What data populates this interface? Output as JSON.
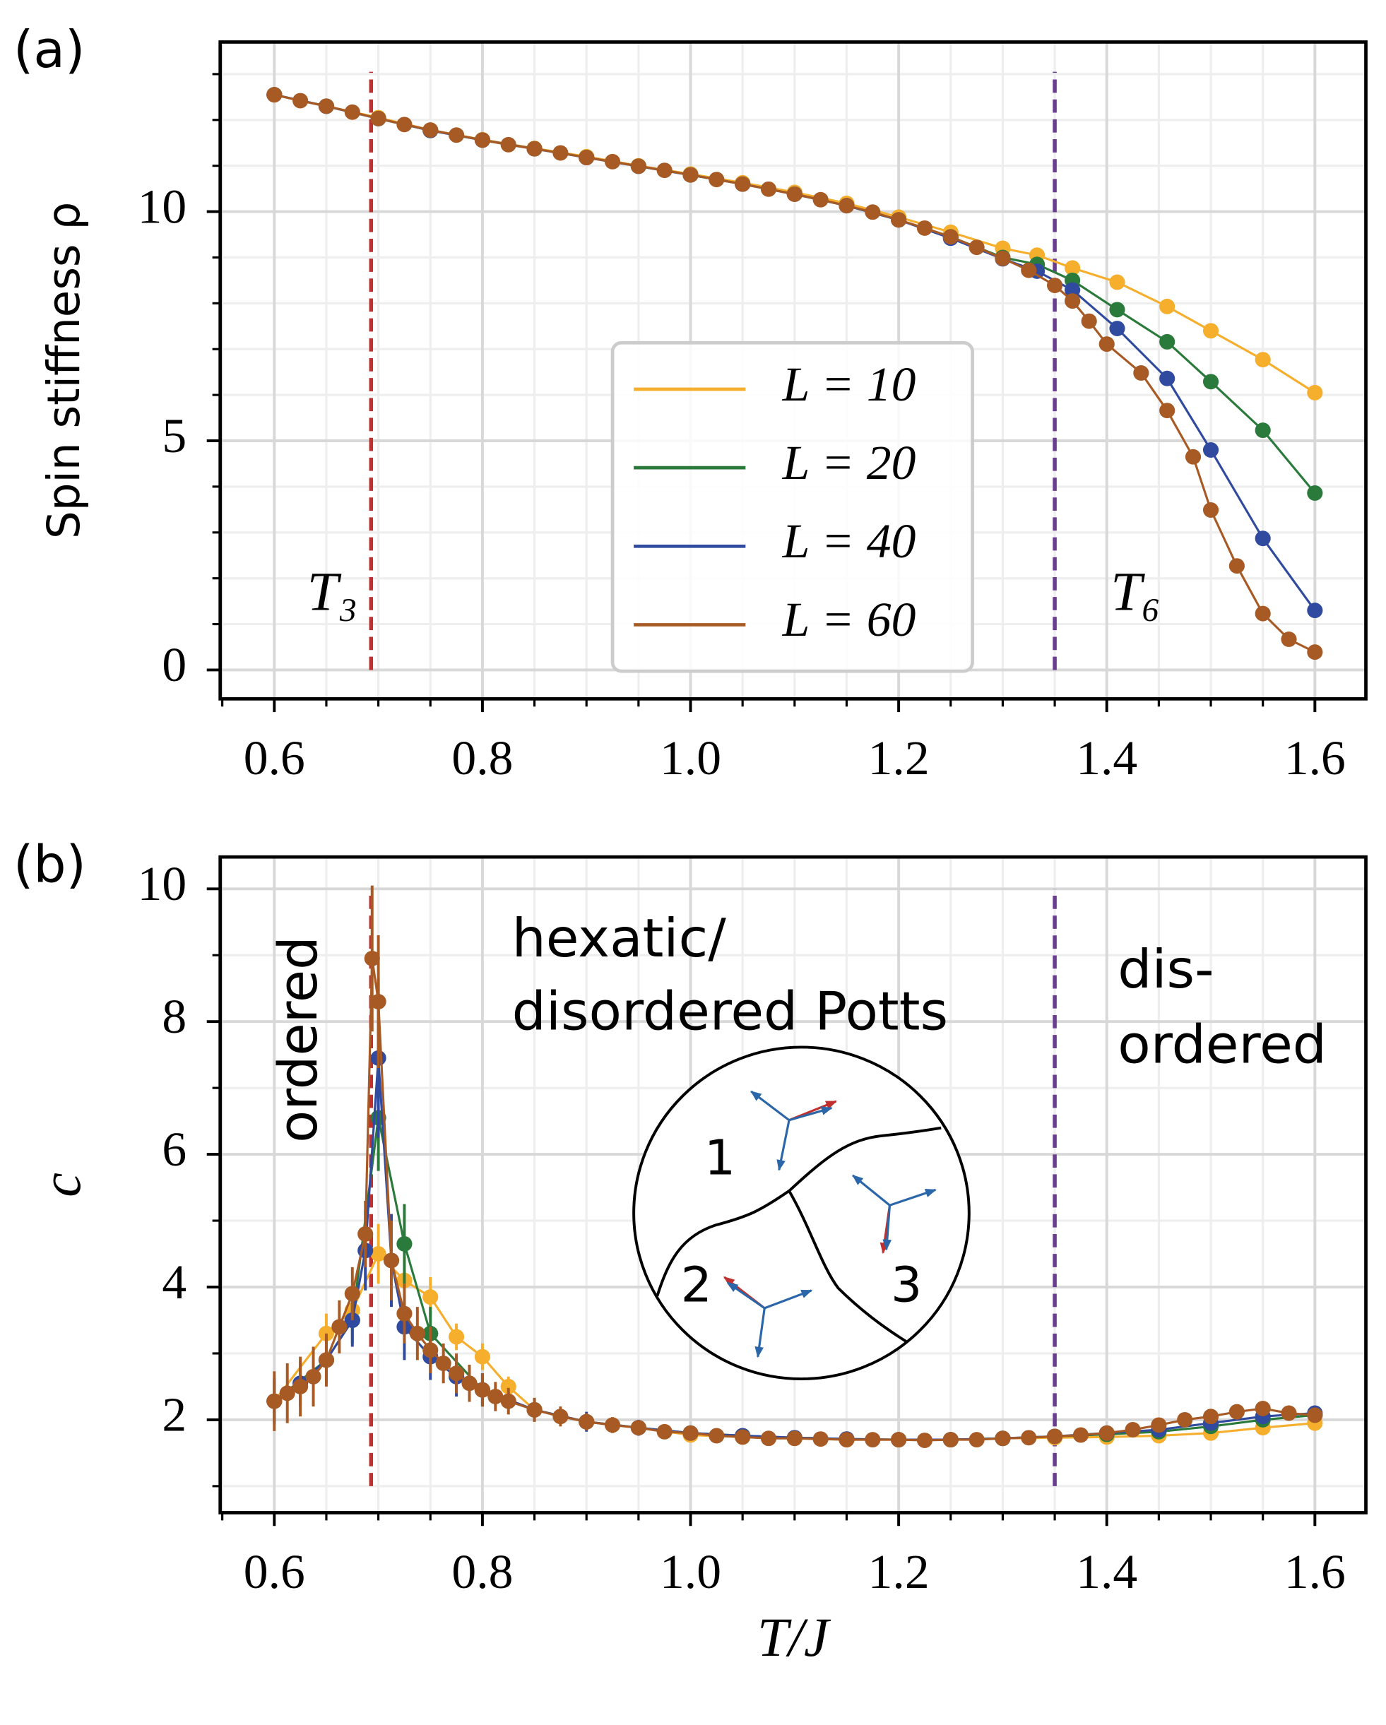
{
  "chart_data": [
    {
      "type": "line",
      "panel_label": "(a)",
      "ylabel": "Spin stiffness ρ",
      "xlim": [
        0.548,
        1.649
      ],
      "ylim": [
        -0.63,
        13.7
      ],
      "xticks": [
        0.6,
        0.8,
        {
          "value": 1,
          "label": "1.0"
        },
        1.2,
        1.4,
        1.6
      ],
      "yticks": [
        0,
        5,
        10
      ],
      "xminorticks": [
        0.55,
        0.65,
        0.7,
        0.75,
        0.85,
        0.9,
        0.95,
        1.05,
        1.1,
        1.15,
        1.25,
        1.3,
        1.35,
        1.45,
        1.5,
        1.55
      ],
      "yminorticks": [
        1,
        2,
        3,
        4,
        6,
        7,
        8,
        9,
        11,
        12,
        13
      ],
      "grid": true,
      "legend": "center",
      "vlines": [
        {
          "x": 0.693,
          "ymin": 0,
          "ymax": 13.05,
          "color": "#c0302e",
          "label": "T₃"
        },
        {
          "x": 1.35,
          "ymin": 0,
          "ymax": 13.05,
          "color": "#6b3d8f",
          "label": "T₆"
        }
      ],
      "series": [
        {
          "name": "L = 10",
          "color": "#f6ae2d",
          "x": [
            0.6,
            0.65,
            0.7,
            0.75,
            0.8,
            0.85,
            0.9,
            0.95,
            1.0,
            1.05,
            1.1,
            1.15,
            1.2,
            1.25,
            1.3,
            1.333,
            1.367,
            1.41,
            1.458,
            1.5,
            1.55,
            1.6
          ],
          "values": [
            12.55,
            12.3,
            12.05,
            11.78,
            11.57,
            11.38,
            11.2,
            11.0,
            10.82,
            10.63,
            10.42,
            10.18,
            9.88,
            9.55,
            9.2,
            9.05,
            8.77,
            8.46,
            7.93,
            7.4,
            6.77,
            6.05
          ]
        },
        {
          "name": "L = 20",
          "color": "#2a7a3b",
          "x": [
            0.6,
            0.65,
            0.7,
            0.75,
            0.8,
            0.85,
            0.9,
            0.95,
            1.0,
            1.05,
            1.1,
            1.15,
            1.2,
            1.25,
            1.3,
            1.333,
            1.367,
            1.41,
            1.458,
            1.5,
            1.55,
            1.6
          ],
          "values": [
            12.55,
            12.3,
            12.03,
            11.77,
            11.56,
            11.37,
            11.18,
            10.99,
            10.8,
            10.6,
            10.38,
            10.13,
            9.82,
            9.45,
            9.0,
            8.85,
            8.5,
            7.86,
            7.16,
            6.29,
            5.23,
            3.86
          ]
        },
        {
          "name": "L = 40",
          "color": "#2f4a9e",
          "x": [
            0.6,
            0.65,
            0.7,
            0.75,
            0.8,
            0.85,
            0.9,
            0.95,
            1.0,
            1.05,
            1.1,
            1.15,
            1.2,
            1.25,
            1.3,
            1.333,
            1.367,
            1.41,
            1.458,
            1.5,
            1.55,
            1.6
          ],
          "values": [
            12.55,
            12.3,
            12.03,
            11.77,
            11.56,
            11.37,
            11.18,
            10.99,
            10.8,
            10.6,
            10.38,
            10.13,
            9.82,
            9.42,
            8.97,
            8.7,
            8.29,
            7.45,
            6.36,
            4.8,
            2.87,
            1.3
          ]
        },
        {
          "name": "L = 60",
          "color": "#a85a25",
          "x": [
            0.6,
            0.625,
            0.65,
            0.675,
            0.7,
            0.725,
            0.75,
            0.775,
            0.8,
            0.825,
            0.85,
            0.875,
            0.9,
            0.925,
            0.95,
            0.975,
            1.0,
            1.025,
            1.05,
            1.075,
            1.1,
            1.125,
            1.15,
            1.175,
            1.2,
            1.225,
            1.25,
            1.275,
            1.3,
            1.325,
            1.35,
            1.367,
            1.383,
            1.4,
            1.433,
            1.458,
            1.483,
            1.5,
            1.525,
            1.55,
            1.575,
            1.6
          ],
          "values": [
            12.55,
            12.42,
            12.3,
            12.17,
            12.03,
            11.9,
            11.78,
            11.67,
            11.56,
            11.46,
            11.37,
            11.28,
            11.18,
            11.09,
            10.99,
            10.9,
            10.8,
            10.7,
            10.6,
            10.49,
            10.38,
            10.26,
            10.13,
            9.99,
            9.82,
            9.64,
            9.45,
            9.22,
            8.98,
            8.72,
            8.39,
            8.05,
            7.61,
            7.11,
            6.48,
            5.66,
            4.65,
            3.49,
            2.27,
            1.23,
            0.67,
            0.39
          ]
        }
      ]
    },
    {
      "type": "errorline",
      "panel_label": "(b)",
      "ylabel": "c",
      "xlabel": "T/J",
      "xlim": [
        0.548,
        1.649
      ],
      "ylim": [
        0.6,
        10.48
      ],
      "xticks": [
        0.6,
        0.8,
        {
          "value": 1,
          "label": "1.0"
        },
        1.2,
        1.4,
        1.6
      ],
      "yticks": [
        2,
        4,
        6,
        8,
        10
      ],
      "xminorticks": [
        0.55,
        0.65,
        0.7,
        0.75,
        0.85,
        0.9,
        0.95,
        1.05,
        1.1,
        1.15,
        1.25,
        1.3,
        1.35,
        1.45,
        1.5,
        1.55
      ],
      "yminorticks": [
        1,
        3,
        5,
        7,
        9
      ],
      "grid": true,
      "vlines": [
        {
          "x": 0.693,
          "ymin": 1,
          "ymax": 10,
          "color": "#c0302e"
        },
        {
          "x": 1.35,
          "ymin": 1,
          "ymax": 10,
          "color": "#6b3d8f"
        }
      ],
      "annotations": [
        "ordered",
        "hexatic/",
        "disordered Potts",
        "dis-",
        "ordered"
      ],
      "inset_labels": [
        "1",
        "2",
        "3"
      ],
      "series": [
        {
          "color": "#f6ae2d",
          "x": [
            0.6,
            0.65,
            0.675,
            0.7,
            0.725,
            0.75,
            0.775,
            0.8,
            0.825,
            0.85,
            0.9,
            0.95,
            1.0,
            1.05,
            1.1,
            1.15,
            1.2,
            1.25,
            1.3,
            1.35,
            1.4,
            1.45,
            1.5,
            1.55,
            1.6
          ],
          "values": [
            2.28,
            3.3,
            3.65,
            4.5,
            4.1,
            3.85,
            3.25,
            2.95,
            2.5,
            2.15,
            1.97,
            1.88,
            1.77,
            1.74,
            1.72,
            1.7,
            1.7,
            1.7,
            1.72,
            1.73,
            1.74,
            1.76,
            1.8,
            1.88,
            1.95
          ],
          "errors": [
            0.3,
            0.3,
            0.3,
            0.45,
            0.35,
            0.3,
            0.2,
            0.2,
            0.15,
            0.1,
            0.08,
            0.06,
            0.05,
            0.05,
            0.04,
            0.04,
            0.04,
            0.04,
            0.04,
            0.04,
            0.04,
            0.04,
            0.04,
            0.04,
            0.04
          ]
        },
        {
          "color": "#2a7a3b",
          "x": [
            0.6,
            0.65,
            0.675,
            0.7,
            0.725,
            0.75,
            0.8,
            0.85,
            0.9,
            0.95,
            1.0,
            1.05,
            1.1,
            1.15,
            1.2,
            1.25,
            1.3,
            1.35,
            1.4,
            1.45,
            1.5,
            1.55,
            1.6
          ],
          "values": [
            2.28,
            2.9,
            3.5,
            6.55,
            4.65,
            3.3,
            2.45,
            2.15,
            1.97,
            1.88,
            1.8,
            1.76,
            1.73,
            1.71,
            1.7,
            1.7,
            1.72,
            1.75,
            1.78,
            1.82,
            1.9,
            2.0,
            2.07
          ],
          "errors": [
            0.3,
            0.3,
            0.35,
            0.8,
            0.6,
            0.4,
            0.25,
            0.15,
            0.12,
            0.1,
            0.08,
            0.06,
            0.05,
            0.05,
            0.05,
            0.05,
            0.05,
            0.05,
            0.05,
            0.05,
            0.05,
            0.05,
            0.05
          ]
        },
        {
          "color": "#2f4a9e",
          "x": [
            0.6,
            0.625,
            0.65,
            0.675,
            0.6875,
            0.7,
            0.7125,
            0.725,
            0.75,
            0.775,
            0.8,
            0.85,
            0.9,
            0.95,
            1.0,
            1.05,
            1.1,
            1.15,
            1.2,
            1.25,
            1.3,
            1.35,
            1.4,
            1.45,
            1.5,
            1.55,
            1.6
          ],
          "values": [
            2.28,
            2.55,
            2.9,
            3.5,
            4.55,
            7.45,
            4.4,
            3.4,
            2.95,
            2.65,
            2.45,
            2.15,
            1.97,
            1.88,
            1.8,
            1.76,
            1.73,
            1.71,
            1.7,
            1.7,
            1.72,
            1.75,
            1.8,
            1.85,
            1.95,
            2.05,
            2.1
          ],
          "errors": [
            0.35,
            0.35,
            0.35,
            0.4,
            0.6,
            1.2,
            0.7,
            0.5,
            0.35,
            0.3,
            0.25,
            0.18,
            0.15,
            0.12,
            0.1,
            0.08,
            0.07,
            0.06,
            0.06,
            0.06,
            0.06,
            0.06,
            0.06,
            0.06,
            0.06,
            0.06,
            0.06
          ]
        },
        {
          "color": "#a85a25",
          "x": [
            0.6,
            0.6125,
            0.625,
            0.6375,
            0.65,
            0.6625,
            0.675,
            0.6875,
            0.694,
            0.7,
            0.7125,
            0.725,
            0.7375,
            0.75,
            0.7625,
            0.775,
            0.7875,
            0.8,
            0.8125,
            0.825,
            0.85,
            0.875,
            0.9,
            0.925,
            0.95,
            0.975,
            1.0,
            1.025,
            1.05,
            1.075,
            1.1,
            1.125,
            1.15,
            1.175,
            1.2,
            1.225,
            1.25,
            1.275,
            1.3,
            1.325,
            1.35,
            1.375,
            1.4,
            1.425,
            1.45,
            1.475,
            1.5,
            1.525,
            1.55,
            1.575,
            1.6
          ],
          "values": [
            2.28,
            2.4,
            2.5,
            2.65,
            2.9,
            3.4,
            3.9,
            4.8,
            8.95,
            8.3,
            4.4,
            3.6,
            3.3,
            3.05,
            2.85,
            2.7,
            2.55,
            2.45,
            2.35,
            2.28,
            2.15,
            2.05,
            1.97,
            1.92,
            1.88,
            1.82,
            1.8,
            1.76,
            1.74,
            1.72,
            1.72,
            1.71,
            1.7,
            1.7,
            1.7,
            1.69,
            1.7,
            1.7,
            1.72,
            1.73,
            1.75,
            1.77,
            1.8,
            1.85,
            1.92,
            2.0,
            2.05,
            2.12,
            2.17,
            2.1,
            2.07
          ],
          "errors": [
            0.45,
            0.45,
            0.45,
            0.45,
            0.4,
            0.4,
            0.4,
            0.5,
            1.1,
            1.0,
            0.6,
            0.45,
            0.4,
            0.35,
            0.3,
            0.3,
            0.28,
            0.25,
            0.22,
            0.2,
            0.18,
            0.15,
            0.13,
            0.12,
            0.1,
            0.09,
            0.08,
            0.07,
            0.07,
            0.06,
            0.06,
            0.06,
            0.05,
            0.05,
            0.05,
            0.05,
            0.05,
            0.05,
            0.05,
            0.05,
            0.05,
            0.05,
            0.05,
            0.05,
            0.05,
            0.05,
            0.05,
            0.05,
            0.05,
            0.05,
            0.05
          ]
        }
      ]
    }
  ]
}
